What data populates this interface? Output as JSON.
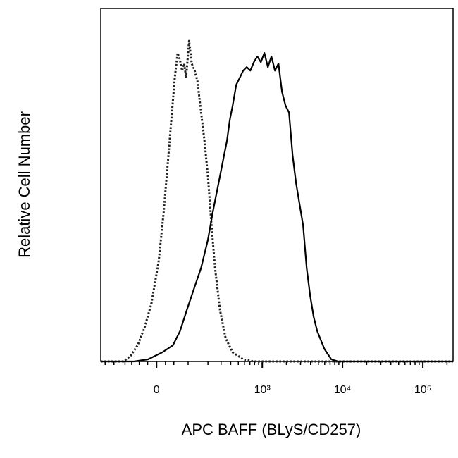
{
  "chart_data": {
    "type": "line",
    "xlabel": "APC BAFF (BLyS/CD257)",
    "ylabel": "Relative Cell Number",
    "xscale": "biexponential",
    "xlim": [
      -230,
      238000
    ],
    "ylim": [
      0,
      100
    ],
    "xticks": [
      0,
      {
        "value": 1000,
        "label": "10³"
      },
      {
        "value": 10000,
        "label": "10⁴"
      },
      {
        "value": 100000,
        "label": "10⁵"
      }
    ],
    "xminorticks": [
      -200,
      -150,
      -100,
      -75,
      -50,
      -25,
      25,
      50,
      100,
      200,
      300,
      400,
      500,
      600,
      700,
      800,
      900,
      2000,
      3000,
      4000,
      5000,
      6000,
      7000,
      8000,
      9000,
      20000,
      30000,
      40000,
      50000,
      60000,
      70000,
      80000,
      90000,
      200000
    ],
    "series": [
      {
        "color": "#222222",
        "style": "dotted",
        "x": [
          -230,
          -106,
          -79,
          -55,
          -34,
          -14,
          6,
          20,
          32,
          44,
          53,
          62,
          70,
          77,
          85,
          92,
          104,
          115,
          128,
          141,
          160,
          179,
          200,
          224,
          250,
          290,
          344,
          423,
          577,
          784,
          238000
        ],
        "values": [
          0,
          0,
          1.6,
          4.6,
          9.6,
          16.6,
          28.5,
          42.5,
          56.5,
          70.5,
          80.4,
          87.4,
          85.4,
          82.4,
          84.4,
          80.4,
          90.8,
          84.4,
          82.4,
          79.4,
          70.5,
          62.5,
          52.5,
          38.5,
          26.5,
          14.6,
          6.6,
          2.6,
          0.6,
          0,
          0
        ]
      },
      {
        "color": "#000000",
        "style": "solid",
        "x": [
          -230,
          -67,
          -24,
          16,
          47,
          70,
          95,
          125,
          160,
          200,
          234,
          278,
          329,
          358,
          390,
          423,
          470,
          521,
          577,
          639,
          708,
          784,
          867,
          959,
          1063,
          1176,
          1301,
          1439,
          1593,
          1763,
          1950,
          2158,
          2387,
          2642,
          2922,
          3234,
          3578,
          3959,
          4380,
          4846,
          5934,
          7250,
          8877,
          238000
        ],
        "values": [
          0,
          0,
          0.6,
          2.6,
          4.6,
          8.6,
          14.6,
          20.6,
          26.5,
          34.5,
          42.5,
          50.5,
          58.5,
          62.5,
          68.5,
          72.5,
          78.4,
          80.4,
          82.4,
          83.4,
          82.4,
          84.8,
          86.4,
          84.8,
          87.4,
          83.4,
          86.4,
          82.4,
          84.4,
          76.4,
          72.5,
          70.5,
          58.5,
          50.5,
          44.5,
          38.5,
          26.5,
          18.6,
          12.6,
          8.6,
          3.6,
          0.6,
          0,
          0
        ]
      }
    ]
  }
}
